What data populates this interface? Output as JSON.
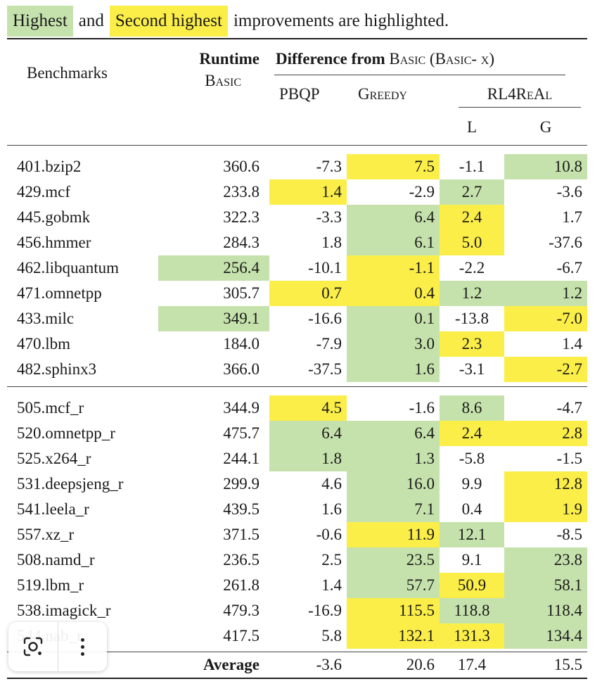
{
  "legend": {
    "highest": "Highest",
    "and": "and",
    "second_highest": "Second highest",
    "suffix": "improvements are highlighted.",
    "colors": {
      "highest": "#c6e2ac",
      "second_highest": "#fbee48"
    }
  },
  "headers": {
    "benchmarks": "Benchmarks",
    "runtime": "Runtime",
    "basic": "Basic",
    "difference_prefix": "Difference from",
    "difference_basic": "Basic",
    "difference_paren": "(Basic- x)",
    "pbqp": "PBQP",
    "greedy": "Greedy",
    "rl4real": "RL4ReAl",
    "l": "L",
    "g": "G"
  },
  "section1": [
    {
      "name": "401.bzip2",
      "runtime": "360.6",
      "pbqp": "-7.3",
      "greedy": "7.5",
      "l": "-1.1",
      "g": "10.8",
      "hl": [
        "",
        "",
        "y",
        "",
        "g"
      ]
    },
    {
      "name": "429.mcf",
      "runtime": "233.8",
      "pbqp": "1.4",
      "greedy": "-2.9",
      "l": "2.7",
      "g": "-3.6",
      "hl": [
        "",
        "y",
        "",
        "g",
        ""
      ]
    },
    {
      "name": "445.gobmk",
      "runtime": "322.3",
      "pbqp": "-3.3",
      "greedy": "6.4",
      "l": "2.4",
      "g": "1.7",
      "hl": [
        "",
        "",
        "g",
        "y",
        ""
      ]
    },
    {
      "name": "456.hmmer",
      "runtime": "284.3",
      "pbqp": "1.8",
      "greedy": "6.1",
      "l": "5.0",
      "g": "-37.6",
      "hl": [
        "",
        "",
        "g",
        "y",
        ""
      ]
    },
    {
      "name": "462.libquantum",
      "runtime": "256.4",
      "pbqp": "-10.1",
      "greedy": "-1.1",
      "l": "-2.2",
      "g": "-6.7",
      "hl": [
        "g",
        "",
        "y",
        "",
        ""
      ]
    },
    {
      "name": "471.omnetpp",
      "runtime": "305.7",
      "pbqp": "0.7",
      "greedy": "0.4",
      "l": "1.2",
      "g": "1.2",
      "hl": [
        "",
        "y",
        "y",
        "g",
        "g"
      ]
    },
    {
      "name": "433.milc",
      "runtime": "349.1",
      "pbqp": "-16.6",
      "greedy": "0.1",
      "l": "-13.8",
      "g": "-7.0",
      "hl": [
        "g",
        "",
        "g",
        "",
        "y"
      ]
    },
    {
      "name": "470.lbm",
      "runtime": "184.0",
      "pbqp": "-7.9",
      "greedy": "3.0",
      "l": "2.3",
      "g": "1.4",
      "hl": [
        "",
        "",
        "g",
        "y",
        ""
      ]
    },
    {
      "name": "482.sphinx3",
      "runtime": "366.0",
      "pbqp": "-37.5",
      "greedy": "1.6",
      "l": "-3.1",
      "g": "-2.7",
      "hl": [
        "",
        "",
        "g",
        "",
        "y"
      ]
    }
  ],
  "section2": [
    {
      "name": "505.mcf_r",
      "runtime": "344.9",
      "pbqp": "4.5",
      "greedy": "-1.6",
      "l": "8.6",
      "g": "-4.7",
      "hl": [
        "",
        "y",
        "",
        "g",
        ""
      ]
    },
    {
      "name": "520.omnetpp_r",
      "runtime": "475.7",
      "pbqp": "6.4",
      "greedy": "6.4",
      "l": "2.4",
      "g": "2.8",
      "hl": [
        "",
        "g",
        "g",
        "y",
        "y"
      ]
    },
    {
      "name": "525.x264_r",
      "runtime": "244.1",
      "pbqp": "1.8",
      "greedy": "1.3",
      "l": "-5.8",
      "g": "-1.5",
      "hl": [
        "",
        "g",
        "g",
        "",
        ""
      ]
    },
    {
      "name": "531.deepsjeng_r",
      "runtime": "299.9",
      "pbqp": "4.6",
      "greedy": "16.0",
      "l": "9.9",
      "g": "12.8",
      "hl": [
        "",
        "",
        "g",
        "",
        "y"
      ]
    },
    {
      "name": "541.leela_r",
      "runtime": "439.5",
      "pbqp": "1.6",
      "greedy": "7.1",
      "l": "0.4",
      "g": "1.9",
      "hl": [
        "",
        "",
        "g",
        "",
        "y"
      ]
    },
    {
      "name": "557.xz_r",
      "runtime": "371.5",
      "pbqp": "-0.6",
      "greedy": "11.9",
      "l": "12.1",
      "g": "-8.5",
      "hl": [
        "",
        "",
        "y",
        "g",
        ""
      ]
    },
    {
      "name": "508.namd_r",
      "runtime": "236.5",
      "pbqp": "2.5",
      "greedy": "23.5",
      "l": "9.1",
      "g": "23.8",
      "hl": [
        "",
        "",
        "g",
        "",
        "g"
      ]
    },
    {
      "name": "519.lbm_r",
      "runtime": "261.8",
      "pbqp": "1.4",
      "greedy": "57.7",
      "l": "50.9",
      "g": "58.1",
      "hl": [
        "",
        "",
        "g",
        "y",
        "g"
      ]
    },
    {
      "name": "538.imagick_r",
      "runtime": "479.3",
      "pbqp": "-16.9",
      "greedy": "115.5",
      "l": "118.8",
      "g": "118.4",
      "hl": [
        "",
        "",
        "y",
        "g",
        "g"
      ]
    },
    {
      "name": "544.nab_r",
      "runtime": "417.5",
      "pbqp": "5.8",
      "greedy": "132.1",
      "l": "131.3",
      "g": "134.4",
      "hl": [
        "",
        "",
        "y",
        "y",
        "g"
      ]
    }
  ],
  "average": {
    "label": "Average",
    "pbqp": "-3.6",
    "greedy": "20.6",
    "l": "17.4",
    "g": "15.5"
  },
  "toolbar": {
    "lens_icon": "lens-search-icon",
    "more_icon": "more-vertical-icon"
  }
}
